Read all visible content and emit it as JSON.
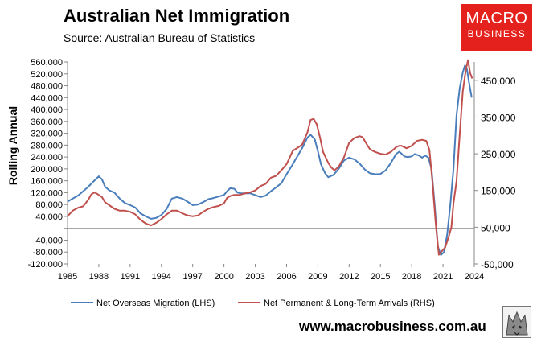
{
  "header": {
    "title": "Australian Net Immigration",
    "source": "Source: Australian Bureau of Statistics"
  },
  "logo": {
    "line1": "MACRO",
    "line2": "BUSINESS",
    "color": "#e4211c"
  },
  "footer": {
    "website": "www.macrobusiness.com.au"
  },
  "chart_data": {
    "type": "line",
    "title": "Australian Net Immigration",
    "ylabel": "Rolling Annual",
    "xlim": [
      1985,
      2024
    ],
    "xticks": [
      "1985",
      "1988",
      "1991",
      "1994",
      "1997",
      "2000",
      "2003",
      "2006",
      "2009",
      "2012",
      "2015",
      "2018",
      "2021",
      "2024"
    ],
    "y_left": {
      "ylim": [
        -120000,
        560000
      ],
      "ticks": [
        "560,000",
        "520,000",
        "480,000",
        "440,000",
        "400,000",
        "360,000",
        "320,000",
        "280,000",
        "240,000",
        "200,000",
        "160,000",
        "120,000",
        "80,000",
        "40,000",
        "-",
        "-40,000",
        "-80,000",
        "-120,000"
      ]
    },
    "y_right": {
      "ylim": [
        -50000,
        500000
      ],
      "ticks": [
        "450,000",
        "350,000",
        "250,000",
        "150,000",
        "50,000",
        "-50,000"
      ]
    },
    "grid": false,
    "legend_position": "bottom",
    "series": [
      {
        "name": "Net Overseas Migration (LHS)",
        "axis": "left",
        "color": "#4a7ebb",
        "points": [
          [
            1985.0,
            90000
          ],
          [
            1985.5,
            100000
          ],
          [
            1986.0,
            110000
          ],
          [
            1986.5,
            125000
          ],
          [
            1987.0,
            140000
          ],
          [
            1987.5,
            158000
          ],
          [
            1988.0,
            175000
          ],
          [
            1988.3,
            165000
          ],
          [
            1988.6,
            140000
          ],
          [
            1989.0,
            128000
          ],
          [
            1989.5,
            120000
          ],
          [
            1990.0,
            100000
          ],
          [
            1990.5,
            85000
          ],
          [
            1991.0,
            78000
          ],
          [
            1991.5,
            70000
          ],
          [
            1992.0,
            50000
          ],
          [
            1992.5,
            40000
          ],
          [
            1993.0,
            32000
          ],
          [
            1993.5,
            35000
          ],
          [
            1994.0,
            45000
          ],
          [
            1994.5,
            65000
          ],
          [
            1995.0,
            100000
          ],
          [
            1995.5,
            105000
          ],
          [
            1996.0,
            100000
          ],
          [
            1996.5,
            90000
          ],
          [
            1997.0,
            78000
          ],
          [
            1997.5,
            80000
          ],
          [
            1998.0,
            88000
          ],
          [
            1998.5,
            98000
          ],
          [
            1999.0,
            102000
          ],
          [
            1999.5,
            107000
          ],
          [
            2000.0,
            112000
          ],
          [
            2000.3,
            125000
          ],
          [
            2000.6,
            135000
          ],
          [
            2001.0,
            133000
          ],
          [
            2001.3,
            120000
          ],
          [
            2001.6,
            118000
          ],
          [
            2002.0,
            118000
          ],
          [
            2002.5,
            118000
          ],
          [
            2003.0,
            112000
          ],
          [
            2003.5,
            105000
          ],
          [
            2004.0,
            110000
          ],
          [
            2004.5,
            125000
          ],
          [
            2005.0,
            138000
          ],
          [
            2005.5,
            152000
          ],
          [
            2006.0,
            182000
          ],
          [
            2006.5,
            210000
          ],
          [
            2007.0,
            240000
          ],
          [
            2007.5,
            270000
          ],
          [
            2008.0,
            305000
          ],
          [
            2008.3,
            315000
          ],
          [
            2008.7,
            300000
          ],
          [
            2009.0,
            260000
          ],
          [
            2009.3,
            215000
          ],
          [
            2009.7,
            185000
          ],
          [
            2010.0,
            172000
          ],
          [
            2010.5,
            180000
          ],
          [
            2011.0,
            200000
          ],
          [
            2011.5,
            228000
          ],
          [
            2012.0,
            238000
          ],
          [
            2012.5,
            232000
          ],
          [
            2013.0,
            218000
          ],
          [
            2013.5,
            198000
          ],
          [
            2014.0,
            185000
          ],
          [
            2014.5,
            182000
          ],
          [
            2015.0,
            183000
          ],
          [
            2015.5,
            195000
          ],
          [
            2016.0,
            220000
          ],
          [
            2016.5,
            250000
          ],
          [
            2016.8,
            258000
          ],
          [
            2017.0,
            252000
          ],
          [
            2017.3,
            242000
          ],
          [
            2017.6,
            240000
          ],
          [
            2018.0,
            242000
          ],
          [
            2018.3,
            250000
          ],
          [
            2018.7,
            245000
          ],
          [
            2019.0,
            238000
          ],
          [
            2019.3,
            245000
          ],
          [
            2019.6,
            238000
          ],
          [
            2019.9,
            200000
          ],
          [
            2020.2,
            80000
          ],
          [
            2020.5,
            -60000
          ],
          [
            2020.8,
            -90000
          ],
          [
            2021.1,
            -80000
          ],
          [
            2021.4,
            -20000
          ],
          [
            2021.7,
            80000
          ],
          [
            2022.0,
            200000
          ],
          [
            2022.3,
            380000
          ],
          [
            2022.6,
            470000
          ],
          [
            2022.9,
            525000
          ],
          [
            2023.1,
            548000
          ],
          [
            2023.3,
            535000
          ],
          [
            2023.5,
            490000
          ],
          [
            2023.75,
            440000
          ]
        ]
      },
      {
        "name": "Net Permanent & Long-Term Arrivals (RHS)",
        "axis": "right",
        "color": "#c0504d",
        "points": [
          [
            1985.0,
            80000
          ],
          [
            1985.5,
            95000
          ],
          [
            1986.0,
            103000
          ],
          [
            1986.5,
            107000
          ],
          [
            1987.0,
            125000
          ],
          [
            1987.3,
            140000
          ],
          [
            1987.6,
            145000
          ],
          [
            1988.0,
            138000
          ],
          [
            1988.3,
            132000
          ],
          [
            1988.6,
            118000
          ],
          [
            1989.0,
            110000
          ],
          [
            1989.5,
            100000
          ],
          [
            1990.0,
            95000
          ],
          [
            1990.5,
            95000
          ],
          [
            1991.0,
            92000
          ],
          [
            1991.5,
            85000
          ],
          [
            1992.0,
            70000
          ],
          [
            1992.5,
            60000
          ],
          [
            1993.0,
            55000
          ],
          [
            1993.5,
            62000
          ],
          [
            1994.0,
            72000
          ],
          [
            1994.5,
            85000
          ],
          [
            1995.0,
            95000
          ],
          [
            1995.5,
            95000
          ],
          [
            1996.0,
            88000
          ],
          [
            1996.5,
            82000
          ],
          [
            1997.0,
            80000
          ],
          [
            1997.5,
            82000
          ],
          [
            1998.0,
            92000
          ],
          [
            1998.5,
            100000
          ],
          [
            1999.0,
            105000
          ],
          [
            1999.5,
            108000
          ],
          [
            2000.0,
            115000
          ],
          [
            2000.3,
            130000
          ],
          [
            2000.6,
            135000
          ],
          [
            2001.0,
            138000
          ],
          [
            2001.5,
            138000
          ],
          [
            2002.0,
            142000
          ],
          [
            2002.5,
            145000
          ],
          [
            2003.0,
            150000
          ],
          [
            2003.5,
            162000
          ],
          [
            2004.0,
            168000
          ],
          [
            2004.5,
            185000
          ],
          [
            2005.0,
            190000
          ],
          [
            2005.5,
            205000
          ],
          [
            2006.0,
            222000
          ],
          [
            2006.3,
            240000
          ],
          [
            2006.6,
            258000
          ],
          [
            2007.0,
            265000
          ],
          [
            2007.5,
            275000
          ],
          [
            2008.0,
            308000
          ],
          [
            2008.3,
            342000
          ],
          [
            2008.6,
            345000
          ],
          [
            2008.9,
            330000
          ],
          [
            2009.2,
            295000
          ],
          [
            2009.5,
            255000
          ],
          [
            2010.0,
            225000
          ],
          [
            2010.3,
            212000
          ],
          [
            2010.6,
            205000
          ],
          [
            2011.0,
            215000
          ],
          [
            2011.5,
            240000
          ],
          [
            2012.0,
            280000
          ],
          [
            2012.5,
            293000
          ],
          [
            2013.0,
            298000
          ],
          [
            2013.3,
            295000
          ],
          [
            2013.6,
            280000
          ],
          [
            2014.0,
            262000
          ],
          [
            2014.5,
            255000
          ],
          [
            2015.0,
            250000
          ],
          [
            2015.5,
            248000
          ],
          [
            2016.0,
            255000
          ],
          [
            2016.5,
            268000
          ],
          [
            2016.8,
            272000
          ],
          [
            2017.0,
            272000
          ],
          [
            2017.5,
            265000
          ],
          [
            2018.0,
            272000
          ],
          [
            2018.5,
            285000
          ],
          [
            2019.0,
            288000
          ],
          [
            2019.4,
            285000
          ],
          [
            2019.7,
            260000
          ],
          [
            2020.0,
            170000
          ],
          [
            2020.3,
            60000
          ],
          [
            2020.6,
            -25000
          ],
          [
            2020.9,
            -15000
          ],
          [
            2021.2,
            -5000
          ],
          [
            2021.5,
            20000
          ],
          [
            2021.8,
            50000
          ],
          [
            2022.0,
            115000
          ],
          [
            2022.3,
            175000
          ],
          [
            2022.6,
            300000
          ],
          [
            2022.9,
            420000
          ],
          [
            2023.2,
            480000
          ],
          [
            2023.4,
            505000
          ],
          [
            2023.6,
            470000
          ],
          [
            2023.8,
            455000
          ]
        ]
      }
    ]
  }
}
